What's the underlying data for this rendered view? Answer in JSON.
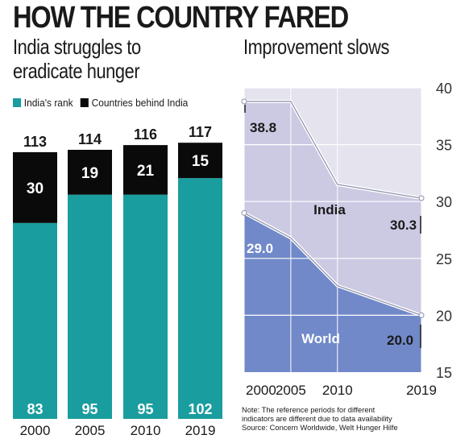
{
  "headline": "HOW THE COUNTRY FARED",
  "left_subtitle_line1": "India struggles to",
  "left_subtitle_line2": "eradicate hunger",
  "right_subtitle": "Improvement slows",
  "note_line1": "Note: The reference periods for different",
  "note_line2": "indicators are different due to data availability",
  "source": "Source: Concern Worldwide, Welt Hunger Hilfe",
  "colors": {
    "rank": "#1a9d9f",
    "behind": "#0a0a0a",
    "india_area": "#ccc9e3",
    "world_area": "#7189c9",
    "chart_bg": "#e4e3ee",
    "grid": "#ffffff"
  },
  "chart_data": [
    {
      "type": "bar",
      "stacked": true,
      "categories": [
        "2000",
        "2005",
        "2010",
        "2019"
      ],
      "totals": [
        "113",
        "114",
        "116",
        "117"
      ],
      "series": [
        {
          "name": "India's rank",
          "values": [
            83,
            95,
            95,
            102
          ]
        },
        {
          "name": "Countries behind India",
          "values": [
            30,
            19,
            21,
            15
          ]
        }
      ],
      "legend_position": "top-left"
    },
    {
      "type": "area",
      "x": [
        "2000",
        "2005",
        "2010",
        "2019"
      ],
      "x_values": [
        2000,
        2005,
        2010,
        2019
      ],
      "ylim": [
        15,
        40
      ],
      "yticks": [
        "15",
        "20",
        "25",
        "30",
        "35",
        "40"
      ],
      "ytick_values": [
        15,
        20,
        25,
        30,
        35,
        40
      ],
      "y_axis_side": "right",
      "grid": true,
      "series": [
        {
          "name": "India",
          "values": [
            38.8,
            38.8,
            31.5,
            30.3
          ]
        },
        {
          "name": "World",
          "values": [
            29.0,
            26.8,
            22.6,
            20.0
          ]
        }
      ],
      "labels": [
        {
          "text": "38.8"
        },
        {
          "text": "30.3"
        },
        {
          "text": "29.0"
        },
        {
          "text": "20.0"
        }
      ]
    }
  ]
}
